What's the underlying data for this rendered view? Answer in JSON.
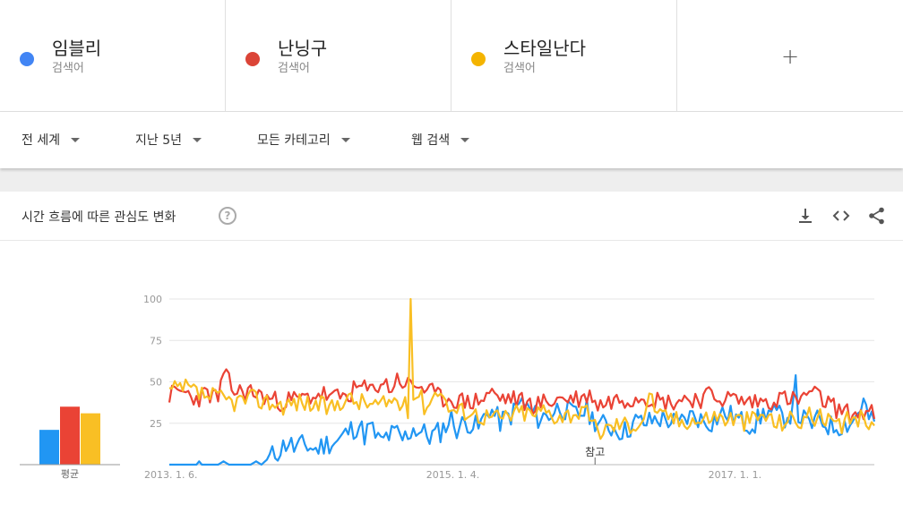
{
  "terms": [
    {
      "name": "임블리",
      "sub": "검색어",
      "color": "#4285F4"
    },
    {
      "name": "난닝구",
      "sub": "검색어",
      "color": "#DB4437"
    },
    {
      "name": "스타일난다",
      "sub": "검색어",
      "color": "#F4B400"
    }
  ],
  "add_label": "+",
  "filters": {
    "region": "전 세계",
    "period": "지난 5년",
    "category": "모든 카테고리",
    "search_type": "웹 검색"
  },
  "card": {
    "title": "시간 흐름에 따른 관심도 변화",
    "help": "?"
  },
  "icons": [
    "download-icon",
    "embed-code-icon",
    "share-icon"
  ],
  "chart_data": {
    "type": "line",
    "ylim": [
      0,
      100
    ],
    "yticks": [
      25,
      50,
      75,
      100
    ],
    "x_tick_labels": [
      "2013. 1. 6.",
      "2015. 1. 4.",
      "2017. 1. 1."
    ],
    "x_tick_weeks": [
      0,
      104,
      208
    ],
    "total_weeks": 260,
    "annotation": {
      "label": "참고",
      "week": 157
    },
    "averages_label": "평균",
    "averages": [
      {
        "name": "임블리",
        "value": 21
      },
      {
        "name": "난닝구",
        "value": 35
      },
      {
        "name": "스타일난다",
        "value": 31
      }
    ],
    "series": [
      {
        "name": "임블리",
        "color": "#2196F3",
        "keypoints": [
          [
            0,
            0
          ],
          [
            10,
            0
          ],
          [
            11,
            2
          ],
          [
            12,
            0
          ],
          [
            18,
            0
          ],
          [
            20,
            2
          ],
          [
            22,
            0
          ],
          [
            30,
            0
          ],
          [
            32,
            2
          ],
          [
            34,
            0
          ],
          [
            36,
            3
          ],
          [
            40,
            8
          ],
          [
            44,
            14
          ],
          [
            46,
            10
          ],
          [
            50,
            12
          ],
          [
            54,
            9
          ],
          [
            58,
            13
          ],
          [
            62,
            14
          ],
          [
            66,
            20
          ],
          [
            70,
            24
          ],
          [
            72,
            18
          ],
          [
            74,
            23
          ],
          [
            78,
            13
          ],
          [
            80,
            17
          ],
          [
            84,
            19
          ],
          [
            86,
            15
          ],
          [
            90,
            22
          ],
          [
            94,
            19
          ],
          [
            96,
            17
          ],
          [
            100,
            20
          ],
          [
            104,
            28
          ],
          [
            106,
            22
          ],
          [
            110,
            26
          ],
          [
            114,
            22
          ],
          [
            118,
            34
          ],
          [
            120,
            30
          ],
          [
            122,
            26
          ],
          [
            126,
            30
          ],
          [
            130,
            38
          ],
          [
            132,
            34
          ],
          [
            136,
            28
          ],
          [
            140,
            30
          ],
          [
            144,
            35
          ],
          [
            148,
            31
          ],
          [
            150,
            30
          ],
          [
            154,
            33
          ],
          [
            156,
            28
          ],
          [
            160,
            24
          ],
          [
            164,
            22
          ],
          [
            168,
            20
          ],
          [
            172,
            26
          ],
          [
            176,
            25
          ],
          [
            180,
            28
          ],
          [
            184,
            27
          ],
          [
            188,
            24
          ],
          [
            190,
            28
          ],
          [
            194,
            30
          ],
          [
            196,
            27
          ],
          [
            200,
            26
          ],
          [
            204,
            31
          ],
          [
            208,
            29
          ],
          [
            212,
            25
          ],
          [
            216,
            25
          ],
          [
            220,
            32
          ],
          [
            224,
            30
          ],
          [
            226,
            28
          ],
          [
            230,
            32
          ],
          [
            231,
            54
          ],
          [
            232,
            30
          ],
          [
            236,
            24
          ],
          [
            240,
            27
          ],
          [
            244,
            23
          ],
          [
            248,
            24
          ],
          [
            252,
            26
          ],
          [
            256,
            38
          ],
          [
            258,
            28
          ],
          [
            260,
            24
          ]
        ],
        "noise": 7,
        "seed": 11
      },
      {
        "name": "난닝구",
        "color": "#EA4335",
        "keypoints": [
          [
            0,
            42
          ],
          [
            5,
            44
          ],
          [
            10,
            40
          ],
          [
            14,
            43
          ],
          [
            18,
            40
          ],
          [
            20,
            55
          ],
          [
            24,
            44
          ],
          [
            30,
            44
          ],
          [
            40,
            38
          ],
          [
            50,
            40
          ],
          [
            56,
            43
          ],
          [
            60,
            40
          ],
          [
            66,
            42
          ],
          [
            70,
            47
          ],
          [
            74,
            44
          ],
          [
            78,
            50
          ],
          [
            82,
            46
          ],
          [
            84,
            52
          ],
          [
            88,
            48
          ],
          [
            92,
            48
          ],
          [
            96,
            44
          ],
          [
            100,
            40
          ],
          [
            104,
            40
          ],
          [
            108,
            38
          ],
          [
            112,
            38
          ],
          [
            116,
            40
          ],
          [
            118,
            44
          ],
          [
            122,
            40
          ],
          [
            126,
            40
          ],
          [
            130,
            38
          ],
          [
            134,
            36
          ],
          [
            140,
            38
          ],
          [
            144,
            40
          ],
          [
            148,
            40
          ],
          [
            152,
            40
          ],
          [
            156,
            42
          ],
          [
            158,
            36
          ],
          [
            162,
            38
          ],
          [
            166,
            40
          ],
          [
            170,
            40
          ],
          [
            174,
            42
          ],
          [
            178,
            40
          ],
          [
            182,
            38
          ],
          [
            186,
            38
          ],
          [
            190,
            40
          ],
          [
            196,
            40
          ],
          [
            200,
            42
          ],
          [
            204,
            40
          ],
          [
            208,
            40
          ],
          [
            212,
            38
          ],
          [
            216,
            38
          ],
          [
            220,
            38
          ],
          [
            224,
            40
          ],
          [
            228,
            40
          ],
          [
            232,
            38
          ],
          [
            236,
            44
          ],
          [
            240,
            40
          ],
          [
            244,
            36
          ],
          [
            248,
            32
          ],
          [
            252,
            30
          ],
          [
            256,
            32
          ],
          [
            260,
            30
          ]
        ],
        "noise": 6,
        "seed": 23
      },
      {
        "name": "스타일난다",
        "color": "#F9BF24",
        "keypoints": [
          [
            0,
            44
          ],
          [
            6,
            46
          ],
          [
            12,
            42
          ],
          [
            18,
            40
          ],
          [
            24,
            38
          ],
          [
            30,
            40
          ],
          [
            36,
            38
          ],
          [
            42,
            36
          ],
          [
            48,
            38
          ],
          [
            54,
            36
          ],
          [
            60,
            34
          ],
          [
            64,
            40
          ],
          [
            70,
            38
          ],
          [
            76,
            36
          ],
          [
            80,
            36
          ],
          [
            82,
            40
          ],
          [
            86,
            36
          ],
          [
            88,
            34
          ],
          [
            89,
            100
          ],
          [
            90,
            40
          ],
          [
            92,
            44
          ],
          [
            94,
            36
          ],
          [
            96,
            38
          ],
          [
            100,
            48
          ],
          [
            102,
            36
          ],
          [
            106,
            32
          ],
          [
            110,
            33
          ],
          [
            114,
            30
          ],
          [
            118,
            29
          ],
          [
            122,
            28
          ],
          [
            126,
            30
          ],
          [
            130,
            32
          ],
          [
            134,
            30
          ],
          [
            138,
            33
          ],
          [
            142,
            30
          ],
          [
            146,
            30
          ],
          [
            150,
            32
          ],
          [
            154,
            30
          ],
          [
            158,
            20
          ],
          [
            162,
            22
          ],
          [
            166,
            25
          ],
          [
            170,
            24
          ],
          [
            174,
            26
          ],
          [
            178,
            44
          ],
          [
            180,
            28
          ],
          [
            184,
            30
          ],
          [
            188,
            26
          ],
          [
            192,
            28
          ],
          [
            196,
            26
          ],
          [
            200,
            30
          ],
          [
            204,
            28
          ],
          [
            208,
            28
          ],
          [
            212,
            26
          ],
          [
            216,
            28
          ],
          [
            220,
            30
          ],
          [
            224,
            24
          ],
          [
            228,
            28
          ],
          [
            232,
            26
          ],
          [
            236,
            30
          ],
          [
            240,
            28
          ],
          [
            244,
            24
          ],
          [
            248,
            22
          ],
          [
            252,
            30
          ],
          [
            256,
            26
          ],
          [
            260,
            28
          ]
        ],
        "noise": 6,
        "seed": 37
      }
    ]
  }
}
